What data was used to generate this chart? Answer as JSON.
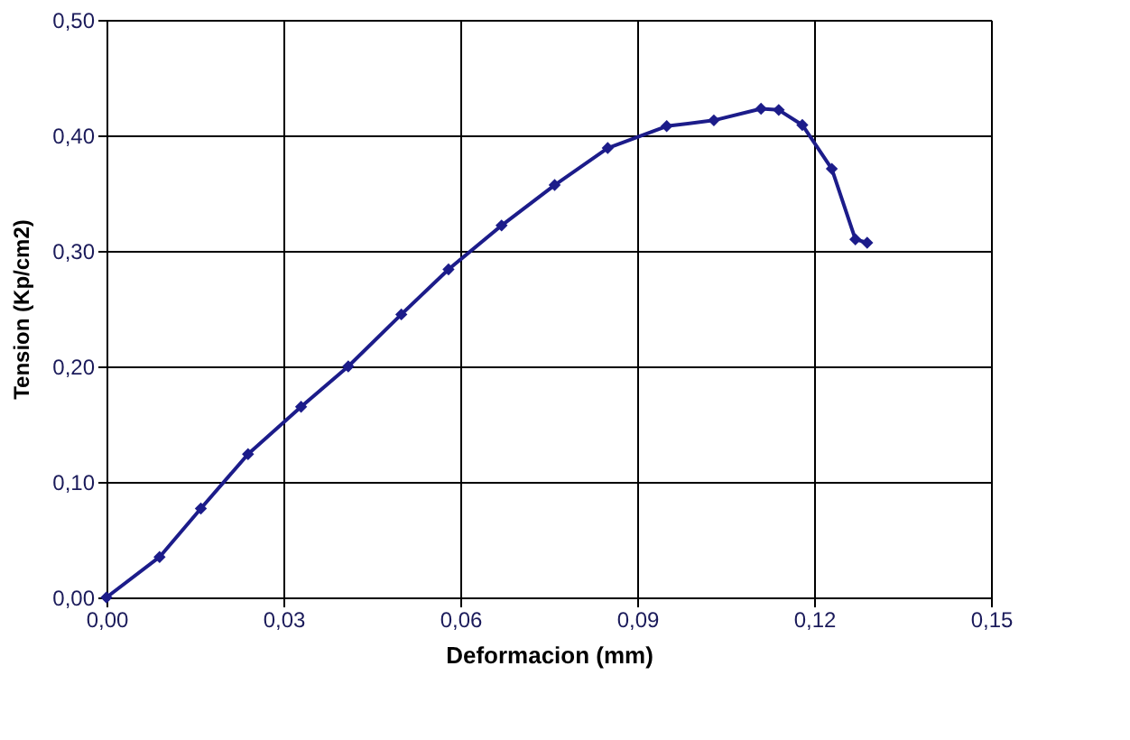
{
  "chart_data": {
    "type": "line",
    "xlabel": "Deformacion (mm)",
    "ylabel": "Tension (Kp/cm2)",
    "x": [
      0,
      0.009,
      0.016,
      0.024,
      0.033,
      0.041,
      0.05,
      0.058,
      0.067,
      0.076,
      0.085,
      0.095,
      0.103,
      0.111,
      0.114,
      0.118,
      0.123,
      0.127,
      0.129
    ],
    "series": [
      {
        "color": "#1c1c8a",
        "values": [
          0,
          0.035,
          0.077,
          0.124,
          0.165,
          0.2,
          0.245,
          0.284,
          0.322,
          0.357,
          0.389,
          0.408,
          0.413,
          0.423,
          0.422,
          0.409,
          0.371,
          0.31,
          0.307
        ]
      }
    ],
    "xlim": [
      0,
      0.15
    ],
    "ylim": [
      0,
      0.5
    ],
    "xticks": [
      {
        "value": 0,
        "label": "0,00"
      },
      {
        "value": 0.03,
        "label": "0,03"
      },
      {
        "value": 0.06,
        "label": "0,06"
      },
      {
        "value": 0.09,
        "label": "0,09"
      },
      {
        "value": 0.12,
        "label": "0,12"
      },
      {
        "value": 0.15,
        "label": "0,15"
      }
    ],
    "yticks": [
      {
        "value": 0,
        "label": "0,00"
      },
      {
        "value": 0.1,
        "label": "0,10"
      },
      {
        "value": 0.2,
        "label": "0,20"
      },
      {
        "value": 0.3,
        "label": "0,30"
      },
      {
        "value": 0.4,
        "label": "0,40"
      },
      {
        "value": 0.5,
        "label": "0,50"
      }
    ],
    "grid": true,
    "marker": "diamond",
    "line_style": "solid",
    "legend": false
  }
}
